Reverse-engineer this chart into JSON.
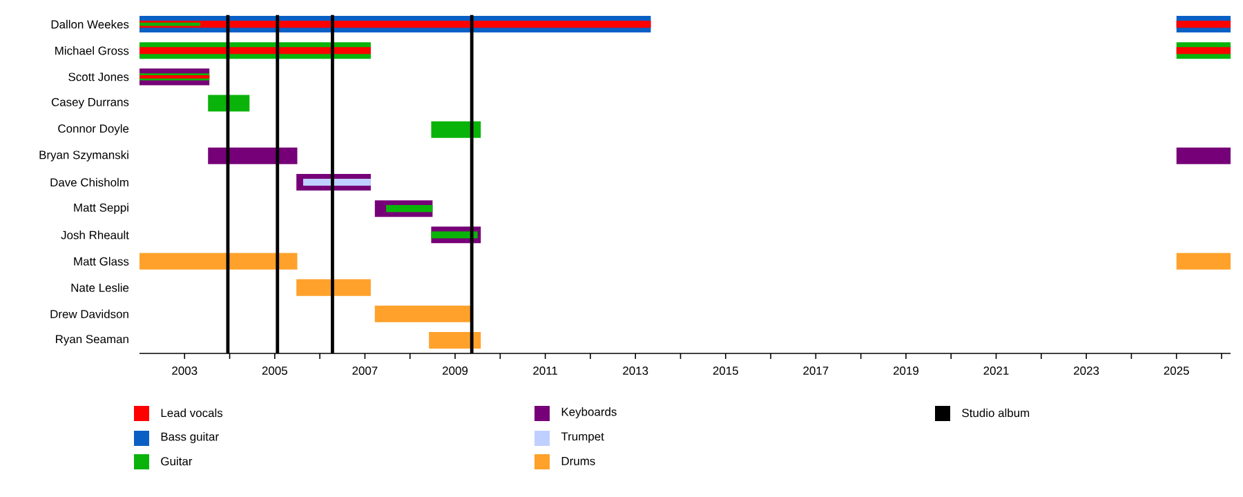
{
  "chart_data": {
    "type": "bar",
    "orientation": "horizontal",
    "categories": [
      "Dallon Weekes",
      "Michael Gross",
      "Scott Jones",
      "Casey Durrans",
      "Connor Doyle",
      "Bryan Szymanski",
      "Dave Chisholm",
      "Matt Seppi",
      "Josh Rheault",
      "Matt Glass",
      "Nate Leslie",
      "Drew Davidson",
      "Ryan Seaman"
    ],
    "series": [
      {
        "name": "Lead vocals",
        "color": "#ff0000",
        "base": [
          2002,
          2002,
          2002,
          null,
          null,
          null,
          null,
          null,
          null,
          null,
          null,
          null,
          null
        ],
        "values": [
          11.34,
          5.13,
          1.55,
          null,
          null,
          null,
          null,
          null,
          null,
          null,
          null,
          null,
          null
        ]
      },
      {
        "name": "Bass guitar",
        "color": "#0a5fc4",
        "base": [
          2002,
          null,
          null,
          null,
          null,
          null,
          null,
          null,
          null,
          null,
          null,
          null,
          null
        ],
        "values": [
          11.34,
          null,
          null,
          null,
          null,
          null,
          null,
          null,
          null,
          null,
          null,
          null,
          null
        ]
      },
      {
        "name": "Guitar",
        "color": "#0ab30a",
        "base": [
          2002,
          2002,
          2002,
          2003.52,
          2008.47,
          null,
          null,
          2007.47,
          2008.47,
          null,
          null,
          null,
          null
        ],
        "values": [
          1.35,
          5.13,
          1.55,
          0.92,
          1.1,
          null,
          null,
          1.03,
          1.03,
          null,
          null,
          null,
          null
        ]
      },
      {
        "name": "Keyboards",
        "color": "#760077",
        "base": [
          null,
          null,
          2002,
          null,
          null,
          2003.52,
          2005.48,
          2007.22,
          2008.47,
          null,
          null,
          null,
          null
        ],
        "values": [
          null,
          null,
          1.55,
          null,
          null,
          1.98,
          1.65,
          1.28,
          1.1,
          null,
          null,
          null,
          null
        ]
      },
      {
        "name": "Trumpet",
        "color": "#bfcfff",
        "base": [
          null,
          null,
          null,
          null,
          null,
          null,
          2005.63,
          null,
          null,
          null,
          null,
          null,
          null
        ],
        "values": [
          null,
          null,
          null,
          null,
          null,
          null,
          1.5,
          null,
          null,
          null,
          null,
          null,
          null
        ]
      },
      {
        "name": "Drums",
        "color": "#ffa12a",
        "base": [
          null,
          null,
          null,
          null,
          null,
          null,
          null,
          null,
          null,
          2002,
          2005.48,
          2007.22,
          2008.42
        ],
        "values": [
          null,
          null,
          null,
          null,
          null,
          null,
          null,
          null,
          null,
          3.5,
          1.65,
          2.18,
          1.15
        ]
      },
      {
        "color": "#ff0000",
        "base": [
          2025,
          2025,
          null,
          null,
          null,
          null,
          null,
          null,
          null,
          null,
          null,
          null,
          null
        ],
        "values": [
          1.2,
          1.2,
          null,
          null,
          null,
          null,
          null,
          null,
          null,
          null,
          null,
          null,
          null
        ]
      },
      {
        "color": "#0a5fc4",
        "base": [
          2025,
          null,
          null,
          null,
          null,
          null,
          null,
          null,
          null,
          null,
          null,
          null,
          null
        ],
        "values": [
          1.2,
          null,
          null,
          null,
          null,
          null,
          null,
          null,
          null,
          null,
          null,
          null,
          null
        ]
      },
      {
        "color": "#0ab30a",
        "base": [
          null,
          2025,
          null,
          null,
          null,
          null,
          null,
          null,
          null,
          null,
          null,
          null,
          null
        ],
        "values": [
          null,
          1.2,
          null,
          null,
          null,
          null,
          null,
          null,
          null,
          null,
          null,
          null,
          null
        ]
      },
      {
        "color": "#760077",
        "base": [
          null,
          null,
          null,
          null,
          null,
          2025,
          null,
          null,
          null,
          null,
          null,
          null,
          null
        ],
        "values": [
          null,
          null,
          null,
          null,
          null,
          1.2,
          null,
          null,
          null,
          null,
          null,
          null,
          null
        ]
      },
      {
        "color": "#ffa12a",
        "base": [
          null,
          null,
          null,
          null,
          null,
          null,
          null,
          null,
          null,
          2025,
          null,
          null,
          null
        ],
        "values": [
          null,
          null,
          null,
          null,
          null,
          null,
          null,
          null,
          null,
          1.2,
          null,
          null,
          null
        ]
      }
    ],
    "xlim": [
      2002,
      2026.2
    ],
    "xticks": [
      2003,
      {
        "value": 2004,
        "label": null
      },
      2005,
      {
        "value": 2006,
        "label": null
      },
      2007,
      {
        "value": 2008,
        "label": null
      },
      2009,
      {
        "value": 2010,
        "label": null
      },
      2011,
      {
        "value": 2012,
        "label": null
      },
      2013,
      {
        "value": 2014,
        "label": null
      },
      2015,
      {
        "value": 2016,
        "label": null
      },
      2017,
      {
        "value": 2018,
        "label": null
      },
      2019,
      {
        "value": 2020,
        "label": null
      },
      2021,
      {
        "value": 2022,
        "label": null
      },
      2023,
      {
        "value": 2024,
        "label": null
      },
      2025,
      {
        "value": 2026,
        "label": null
      }
    ],
    "ref_lines": [
      {
        "axis": "x",
        "value": 2003.96,
        "label": "Studio album",
        "color": "#000000"
      },
      {
        "axis": "x",
        "value": 2005.06,
        "color": "#000000"
      },
      {
        "axis": "x",
        "value": 2006.28,
        "color": "#000000"
      },
      {
        "axis": "x",
        "value": 2009.37,
        "color": "#000000"
      }
    ],
    "legend": "bottom"
  }
}
